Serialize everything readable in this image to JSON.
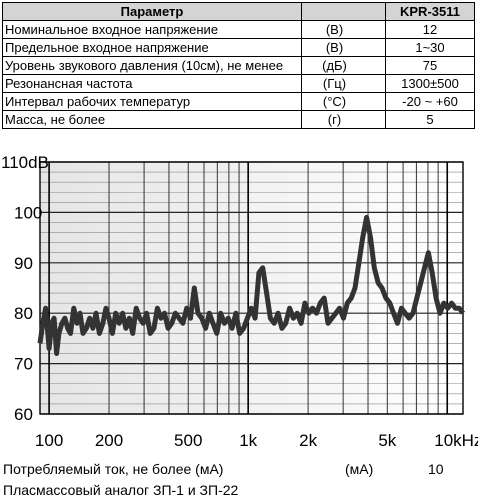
{
  "table": {
    "headers": [
      "Параметр",
      "",
      "KPR-3511"
    ],
    "rows": [
      {
        "param": "Номинальное входное напряжение",
        "unit": "(В)",
        "value": "12"
      },
      {
        "param": "Предельное входное напряжение",
        "unit": "(В)",
        "value": "1~30"
      },
      {
        "param": "Уровень звукового давления (10см), не менее",
        "unit": "(дБ)",
        "value": "75"
      },
      {
        "param": "Резонансная частота",
        "unit": "(Гц)",
        "value": "1300±500"
      },
      {
        "param": "Интервал рабочих температур",
        "unit": "(°C)",
        "value": "-20 ~ +60"
      },
      {
        "param": "Масса, не более",
        "unit": "(г)",
        "value": "5"
      }
    ]
  },
  "chart_data": {
    "type": "line",
    "x_scale": "log",
    "y_tick_labels": [
      "110dB",
      "100",
      "90",
      "80",
      "70",
      "60"
    ],
    "x_tick_labels": [
      "100",
      "200",
      "500",
      "1k",
      "2k",
      "5k",
      "10kHz"
    ],
    "ylim": [
      60,
      110
    ],
    "xlim": [
      90,
      12000
    ],
    "grid": true,
    "series": [
      {
        "x": [
          90,
          93,
          96,
          98,
          100,
          103,
          106,
          109,
          112,
          116,
          120,
          124,
          128,
          133,
          138,
          143,
          148,
          154,
          160,
          166,
          172,
          179,
          186,
          193,
          200,
          208,
          216,
          225,
          234,
          243,
          253,
          263,
          274,
          285,
          297,
          309,
          322,
          336,
          350,
          365,
          380,
          396,
          413,
          431,
          450,
          470,
          491,
          513,
          536,
          560,
          585,
          611,
          638,
          666,
          696,
          727,
          760,
          794,
          830,
          868,
          907,
          948,
          991,
          1036,
          1083,
          1132,
          1183,
          1237,
          1293,
          1352,
          1413,
          1477,
          1544,
          1614,
          1687,
          1764,
          1844,
          1928,
          2016,
          2108,
          2204,
          2304,
          2409,
          2519,
          2634,
          2754,
          2880,
          3011,
          3148,
          3292,
          3442,
          3599,
          3763,
          3935,
          4115,
          4303,
          4499,
          4704,
          4919,
          5144,
          5379,
          5625,
          5882,
          6151,
          6432,
          6726,
          7033,
          7354,
          7690,
          8041,
          8408,
          8792,
          9194,
          9614,
          10053,
          10512,
          10992,
          11494,
          12000
        ],
        "y": [
          74,
          78,
          81,
          77,
          73,
          78,
          79,
          72,
          76,
          78,
          79,
          77,
          76,
          81,
          78,
          80,
          76,
          77,
          79,
          77,
          80,
          76,
          78,
          81,
          79,
          76,
          80,
          78,
          80,
          77,
          79,
          76,
          81,
          79,
          78,
          80,
          76,
          77,
          81,
          79,
          80,
          77,
          78,
          80,
          79,
          78,
          81,
          79,
          85,
          80,
          79,
          77,
          80,
          78,
          76,
          80,
          78,
          79,
          77,
          80,
          76,
          77,
          79,
          81,
          79,
          88,
          89,
          84,
          79,
          78,
          80,
          77,
          78,
          81,
          79,
          80,
          78,
          82,
          80,
          81,
          80,
          82,
          83,
          78,
          79,
          80,
          81,
          79,
          82,
          83,
          85,
          90,
          95,
          99,
          95,
          89,
          86,
          85,
          83,
          82,
          80,
          78,
          81,
          80,
          79,
          80,
          83,
          86,
          89,
          92,
          88,
          83,
          80,
          82,
          81,
          82,
          81,
          81,
          80
        ]
      }
    ]
  },
  "footer": {
    "line1_label": "Потребляемый ток, не более  (мА)",
    "line1_unit": "(мА)",
    "line1_value": "10",
    "line2": "Пласмассовый аналог ЗП-1 и ЗП-22"
  }
}
